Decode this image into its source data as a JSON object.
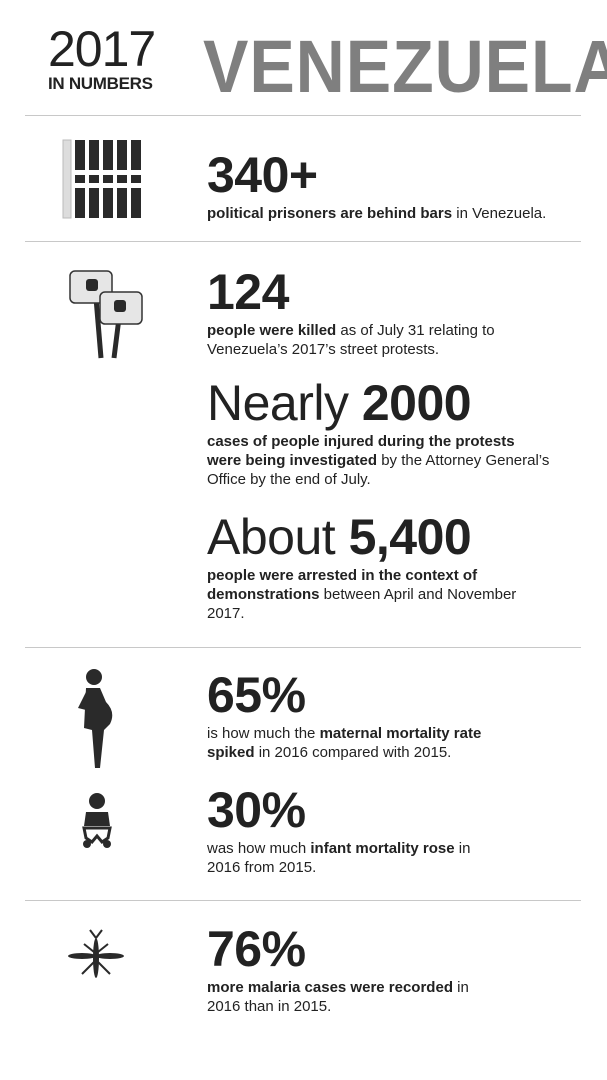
{
  "header": {
    "year": "2017",
    "subtitle": "IN NUMBERS",
    "country": "VENEZUELA",
    "country_color": "#7f7f7f"
  },
  "stats": [
    {
      "icon": "prison-bars-icon",
      "prefix": "",
      "value": "340+",
      "caption": [
        {
          "t": "political prisoners are behind bars",
          "b": true
        },
        {
          "t": " in Venezuela.",
          "b": false
        }
      ]
    },
    {
      "icon": "protest-signs-icon",
      "prefix": "",
      "value": "124",
      "caption": [
        {
          "t": "people were killed",
          "b": true
        },
        {
          "t": " as of July 31 relating to Venezuela’s 2017’s street protests.",
          "b": false
        }
      ]
    },
    {
      "icon": "",
      "prefix": "Nearly ",
      "value": "2000",
      "caption": [
        {
          "t": "cases of people injured during the protests were being investigated",
          "b": true
        },
        {
          "t": " by the Attorney General’s Office by the end of July.",
          "b": false
        }
      ]
    },
    {
      "icon": "",
      "prefix": "About ",
      "value": "5,400",
      "caption": [
        {
          "t": "people were arrested in the context of demonstrations",
          "b": true
        },
        {
          "t": " between April and November 2017.",
          "b": false
        }
      ]
    },
    {
      "icon": "pregnant-woman-icon",
      "prefix": "",
      "value": "65%",
      "caption": [
        {
          "t": "is how much the ",
          "b": false
        },
        {
          "t": "maternal mortality rate spiked",
          "b": true
        },
        {
          "t": " in 2016 compared with 2015.",
          "b": false
        }
      ]
    },
    {
      "icon": "baby-icon",
      "prefix": "",
      "value": "30%",
      "caption": [
        {
          "t": "was how much ",
          "b": false
        },
        {
          "t": "infant mortality rose",
          "b": true
        },
        {
          "t": " in 2016 from 2015.",
          "b": false
        }
      ]
    },
    {
      "icon": "mosquito-icon",
      "prefix": "",
      "value": "76%",
      "caption": [
        {
          "t": "more malaria cases were recorded",
          "b": true
        },
        {
          "t": " in 2016 than in 2015.",
          "b": false
        }
      ]
    }
  ]
}
